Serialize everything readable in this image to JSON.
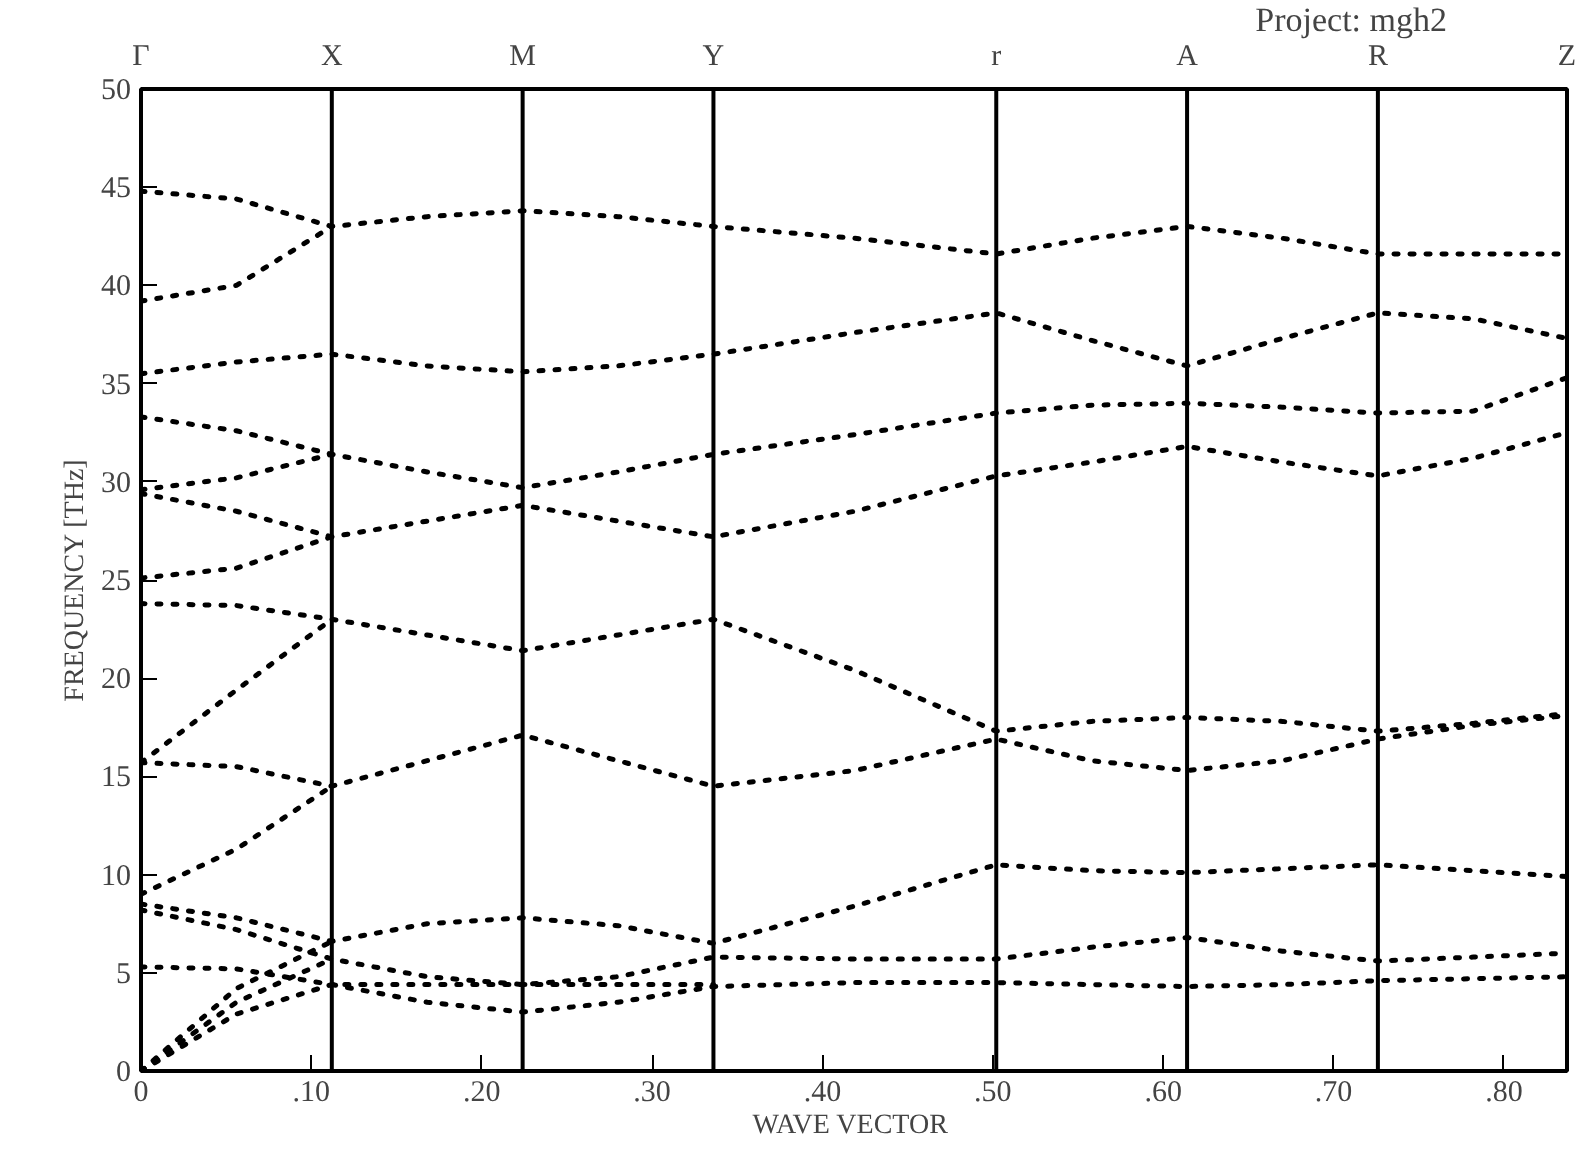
{
  "chart_data": {
    "type": "line",
    "title": "Project: mgh2",
    "xlabel": "WAVE  VECTOR",
    "ylabel": "FREQUENCY [THz]",
    "x": [
      0,
      0.056,
      0.112,
      0.168,
      0.224,
      0.28,
      0.336,
      0.419,
      0.502,
      0.558,
      0.614,
      0.67,
      0.726,
      0.782,
      0.837
    ],
    "xlim": [
      0,
      0.837
    ],
    "ylim": [
      0,
      50
    ],
    "xticks": [
      0,
      {
        "value": 0.1,
        "label": ".10"
      },
      {
        "value": 0.2,
        "label": ".20"
      },
      {
        "value": 0.3,
        "label": ".30"
      },
      {
        "value": 0.4,
        "label": ".40"
      },
      {
        "value": 0.5,
        "label": ".50"
      },
      {
        "value": 0.6,
        "label": ".60"
      },
      {
        "value": 0.7,
        "label": ".70"
      },
      {
        "value": 0.8,
        "label": ".80"
      }
    ],
    "yticks": [
      0,
      5,
      10,
      15,
      20,
      25,
      30,
      35,
      40,
      45,
      50
    ],
    "annotations": [
      "Γ",
      "Z"
    ],
    "ref_lines": [
      {
        "axis": "x",
        "value": 0.112,
        "label": "X",
        "color": "#000000",
        "line_style": "solid"
      },
      {
        "axis": "x",
        "value": 0.224,
        "label": "M",
        "color": "#000000",
        "line_style": "solid"
      },
      {
        "axis": "x",
        "value": 0.336,
        "label": "Y",
        "color": "#000000",
        "line_style": "solid"
      },
      {
        "axis": "x",
        "value": 0.502,
        "label": "r",
        "color": "#000000",
        "line_style": "solid"
      },
      {
        "axis": "x",
        "value": 0.614,
        "label": "A",
        "color": "#000000",
        "line_style": "solid"
      },
      {
        "axis": "x",
        "value": 0.726,
        "label": "R",
        "color": "#000000",
        "line_style": "solid"
      }
    ],
    "grid": false,
    "marker": "none",
    "line_style": "dotted",
    "series": [
      {
        "color": "#000000",
        "values": [
          44.8,
          44.4,
          43.0,
          43.5,
          43.8,
          43.5,
          43.0,
          42.4,
          41.6,
          42.4,
          43.0,
          42.4,
          41.6,
          41.6,
          41.6
        ]
      },
      {
        "color": "#000000",
        "x": [
          0,
          0.056,
          0.112
        ],
        "values": [
          39.2,
          40.0,
          43.0
        ]
      },
      {
        "color": "#000000",
        "values": [
          35.5,
          36.1,
          36.5,
          35.9,
          35.6,
          35.9,
          36.5,
          37.6,
          38.6,
          37.2,
          35.9,
          37.3,
          38.6,
          38.3,
          37.3
        ]
      },
      {
        "color": "#000000",
        "values": [
          33.3,
          32.6,
          31.4,
          30.5,
          29.7,
          30.5,
          31.4,
          32.4,
          33.5,
          33.9,
          34.0,
          33.8,
          33.5,
          33.6,
          35.3
        ]
      },
      {
        "color": "#000000",
        "x": [
          0,
          0.056,
          0.112
        ],
        "values": [
          29.6,
          30.2,
          31.4
        ]
      },
      {
        "color": "#000000",
        "values": [
          29.4,
          28.5,
          27.2,
          28.0,
          28.8,
          28.0,
          27.2,
          28.5,
          30.3,
          31.0,
          31.8,
          31.0,
          30.3,
          31.2,
          32.5
        ]
      },
      {
        "color": "#000000",
        "x": [
          0,
          0.056,
          0.112
        ],
        "values": [
          25.1,
          25.6,
          27.2
        ]
      },
      {
        "color": "#000000",
        "values": [
          23.8,
          23.7,
          23.0,
          22.2,
          21.4,
          22.2,
          23.0,
          20.4,
          17.3,
          17.8,
          18.0,
          17.8,
          17.3,
          17.7,
          18.2
        ]
      },
      {
        "color": "#000000",
        "x": [
          0,
          0.056,
          0.112
        ],
        "values": [
          15.7,
          19.4,
          23.0
        ]
      },
      {
        "color": "#000000",
        "values": [
          15.7,
          15.5,
          14.5,
          15.8,
          17.1,
          15.8,
          14.5,
          15.3,
          16.9,
          15.8,
          15.3,
          15.8,
          16.9,
          17.6,
          18.1
        ]
      },
      {
        "color": "#000000",
        "x": [
          0,
          0.056,
          0.112
        ],
        "values": [
          9.0,
          11.3,
          14.5
        ]
      },
      {
        "color": "#000000",
        "values": [
          8.5,
          7.8,
          6.6,
          7.5,
          7.8,
          7.4,
          6.5,
          8.4,
          10.5,
          10.2,
          10.1,
          10.3,
          10.5,
          10.2,
          9.9
        ]
      },
      {
        "color": "#000000",
        "values": [
          8.2,
          7.2,
          5.7,
          4.8,
          4.4,
          4.8,
          5.8,
          5.7,
          5.7,
          6.3,
          6.8,
          6.1,
          5.6,
          5.8,
          6.0
        ]
      },
      {
        "color": "#000000",
        "values": [
          5.3,
          5.2,
          4.4,
          3.5,
          3.0,
          3.5,
          4.3,
          4.5,
          4.5,
          4.4,
          4.3,
          4.4,
          4.6,
          4.7,
          4.8
        ]
      },
      {
        "color": "#000000",
        "x": [
          0,
          0.056,
          0.112
        ],
        "values": [
          0,
          4.2,
          6.6
        ]
      },
      {
        "color": "#000000",
        "x": [
          0,
          0.056,
          0.112
        ],
        "values": [
          0,
          3.5,
          5.7
        ]
      },
      {
        "color": "#000000",
        "x": [
          0,
          0.056,
          0.112,
          0.168,
          0.224,
          0.28,
          0.336
        ],
        "values": [
          0,
          2.9,
          4.4,
          4.4,
          4.4,
          4.4,
          4.4
        ]
      }
    ]
  }
}
